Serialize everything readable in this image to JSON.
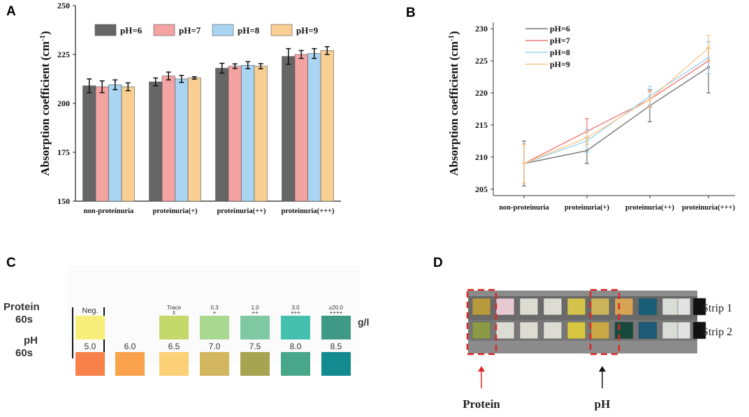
{
  "panel_letters": {
    "a": "A",
    "b": "B",
    "c": "C",
    "d": "D"
  },
  "colors": {
    "ph6": "#666666",
    "ph7": "#f4a3a3",
    "ph8": "#a9d5f3",
    "ph9": "#f9cf93",
    "red": "#e02424"
  },
  "chart_data": [
    {
      "type": "bar",
      "categories": [
        "non-proteinuria",
        "proteinuria(+)",
        "proteinuria(++)",
        "proteinuria(+++)"
      ],
      "series": [
        {
          "name": "pH=6",
          "values": [
            209,
            211,
            218,
            224
          ],
          "errors": [
            3.5,
            2.0,
            2.5,
            4.0
          ]
        },
        {
          "name": "pH=7",
          "values": [
            208.5,
            214,
            219,
            225
          ],
          "errors": [
            3.0,
            2.0,
            1.2,
            2.0
          ]
        },
        {
          "name": "pH=8",
          "values": [
            209.5,
            212.5,
            219.5,
            225.5
          ],
          "errors": [
            2.5,
            1.8,
            1.8,
            2.5
          ]
        },
        {
          "name": "pH=9",
          "values": [
            208.5,
            213,
            219,
            227
          ],
          "errors": [
            2.0,
            0.6,
            1.3,
            2.0
          ]
        }
      ],
      "ylabel": "Absorption coefficient (cm",
      "ylabel_sup": "-1",
      "ylabel_end": ")",
      "ylim": [
        150,
        250
      ],
      "yticks": [
        "150",
        "175",
        "200",
        "225",
        "250"
      ]
    },
    {
      "type": "line",
      "categories": [
        "non-proteinuria",
        "proteinuria(+)",
        "proteinuria(++)",
        "proteinuria(+++)"
      ],
      "series": [
        {
          "name": "pH=6",
          "values": [
            209,
            211,
            218,
            224
          ],
          "errors": [
            3.5,
            2.0,
            2.5,
            4.0
          ]
        },
        {
          "name": "pH=7",
          "values": [
            209,
            214,
            219,
            225
          ],
          "errors": [
            3.0,
            2.0,
            1.2,
            2.0
          ]
        },
        {
          "name": "pH=8",
          "values": [
            209,
            212.5,
            219.5,
            225.5
          ],
          "errors": [
            3.0,
            1.8,
            1.5,
            2.5
          ]
        },
        {
          "name": "pH=9",
          "values": [
            209,
            213,
            219,
            227
          ],
          "errors": [
            3.0,
            1.0,
            1.3,
            2.0
          ]
        }
      ],
      "ylabel": "Absorption coefficient (cm",
      "ylabel_sup": "-1",
      "ylabel_end": ")",
      "ylim": [
        204,
        231
      ],
      "yticks": [
        "205",
        "210",
        "215",
        "220",
        "225",
        "230"
      ]
    }
  ],
  "panel_c": {
    "row_protein": "Protein\n60s",
    "row_protein_l1": "Protein",
    "row_protein_l2": "60s",
    "row_ph_l1": "pH",
    "row_ph_l2": "60s",
    "unit": "g/l",
    "protein_labels": [
      {
        "top": "Neg.",
        "sub": ""
      },
      {
        "top": "Trace",
        "sub": "±"
      },
      {
        "top": "0.3",
        "sub": "+"
      },
      {
        "top": "1.0",
        "sub": "++"
      },
      {
        "top": "3.0",
        "sub": "+++"
      },
      {
        "top": "≥20.0",
        "sub": "++++"
      }
    ],
    "protein_colors": [
      "#f7ef7a",
      "#c3d96b",
      "#a9d890",
      "#7fc9a2",
      "#45bfae",
      "#3e9a85"
    ],
    "ph_labels": [
      "5.0",
      "6.0",
      "6.5",
      "7.0",
      "7.5",
      "8.0",
      "8.5"
    ],
    "ph_colors": [
      "#f8804a",
      "#f9a24b",
      "#fbd077",
      "#d3b660",
      "#a7a451",
      "#48a788",
      "#128a8f"
    ]
  },
  "panel_d": {
    "strip1": "Strip 1",
    "strip2": "Strip 2",
    "protein_label": "Protein",
    "ph_label": "pH",
    "strip1_colors": [
      "#b89a3c",
      "#e7c9d2",
      "#dcdcd2",
      "#dcdcd4",
      "#d3c34a",
      "#cab35a",
      "#d7a456",
      "#185e78",
      "#dadcd6",
      "#e2e2e2",
      "#111111"
    ],
    "strip2_colors": [
      "#8c9a46",
      "#dcdcd4",
      "#dcdcd2",
      "#dcdcd4",
      "#d9c640",
      "#caa846",
      "#174a3d",
      "#1d5a78",
      "#dadcd6",
      "#e2e2e2",
      "#111111"
    ]
  }
}
